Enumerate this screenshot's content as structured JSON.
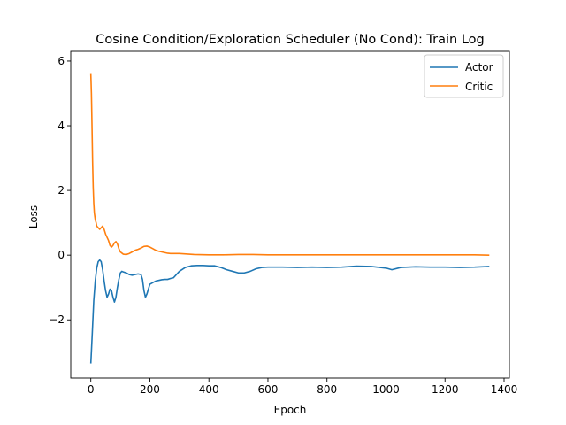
{
  "chart_data": {
    "type": "line",
    "title": "Cosine Condition/Exploration Scheduler (No Cond): Train Log",
    "xlabel": "Epoch",
    "ylabel": "Loss",
    "xlim": [
      -68,
      1418
    ],
    "ylim": [
      -3.8,
      6.3
    ],
    "xticks": [
      0,
      200,
      400,
      600,
      800,
      1000,
      1200,
      1400
    ],
    "yticks": [
      -2,
      0,
      2,
      4,
      6
    ],
    "xtick_labels": [
      "0",
      "200",
      "400",
      "600",
      "800",
      "1000",
      "1200",
      "1400"
    ],
    "ytick_labels": [
      "−2",
      "0",
      "2",
      "4",
      "6"
    ],
    "grid": false,
    "legend_position": "top-right",
    "series": [
      {
        "name": "Actor",
        "color": "#1f77b4",
        "x": [
          0,
          5,
          10,
          15,
          20,
          25,
          30,
          35,
          40,
          45,
          50,
          55,
          60,
          65,
          70,
          75,
          80,
          85,
          90,
          95,
          100,
          105,
          110,
          120,
          130,
          140,
          150,
          160,
          170,
          175,
          180,
          185,
          190,
          195,
          200,
          210,
          220,
          230,
          240,
          250,
          260,
          270,
          280,
          290,
          300,
          320,
          340,
          360,
          380,
          400,
          420,
          440,
          460,
          480,
          500,
          520,
          540,
          560,
          580,
          600,
          650,
          700,
          750,
          800,
          850,
          900,
          950,
          1000,
          1020,
          1050,
          1100,
          1150,
          1200,
          1250,
          1300,
          1350
        ],
        "y": [
          -3.35,
          -2.4,
          -1.4,
          -0.8,
          -0.4,
          -0.2,
          -0.15,
          -0.2,
          -0.45,
          -0.8,
          -1.1,
          -1.3,
          -1.2,
          -1.05,
          -1.1,
          -1.3,
          -1.45,
          -1.3,
          -1.0,
          -0.75,
          -0.55,
          -0.5,
          -0.52,
          -0.55,
          -0.6,
          -0.62,
          -0.6,
          -0.58,
          -0.6,
          -0.75,
          -1.1,
          -1.3,
          -1.2,
          -1.05,
          -0.9,
          -0.85,
          -0.8,
          -0.78,
          -0.76,
          -0.75,
          -0.75,
          -0.72,
          -0.7,
          -0.6,
          -0.5,
          -0.38,
          -0.33,
          -0.32,
          -0.32,
          -0.33,
          -0.33,
          -0.38,
          -0.45,
          -0.5,
          -0.55,
          -0.55,
          -0.5,
          -0.42,
          -0.38,
          -0.37,
          -0.37,
          -0.38,
          -0.37,
          -0.38,
          -0.37,
          -0.34,
          -0.35,
          -0.4,
          -0.45,
          -0.38,
          -0.36,
          -0.37,
          -0.37,
          -0.38,
          -0.37,
          -0.35
        ]
      },
      {
        "name": "Critic",
        "color": "#ff7f0e",
        "x": [
          0,
          2,
          4,
          6,
          8,
          10,
          12,
          15,
          18,
          20,
          25,
          30,
          35,
          40,
          45,
          50,
          55,
          60,
          65,
          70,
          75,
          80,
          85,
          90,
          95,
          100,
          110,
          120,
          130,
          140,
          150,
          160,
          170,
          180,
          190,
          200,
          210,
          220,
          230,
          240,
          250,
          260,
          270,
          280,
          300,
          350,
          400,
          450,
          500,
          550,
          600,
          700,
          800,
          900,
          1000,
          1100,
          1200,
          1300,
          1350
        ],
        "y": [
          5.6,
          5.0,
          4.0,
          2.9,
          2.1,
          1.6,
          1.3,
          1.1,
          1.0,
          0.9,
          0.85,
          0.8,
          0.85,
          0.9,
          0.8,
          0.65,
          0.55,
          0.45,
          0.3,
          0.25,
          0.3,
          0.38,
          0.42,
          0.35,
          0.2,
          0.1,
          0.03,
          0.02,
          0.05,
          0.1,
          0.15,
          0.18,
          0.22,
          0.27,
          0.28,
          0.25,
          0.2,
          0.15,
          0.12,
          0.1,
          0.08,
          0.06,
          0.05,
          0.05,
          0.05,
          0.02,
          0.01,
          0.01,
          0.02,
          0.02,
          0.01,
          0.01,
          0.01,
          0.01,
          0.01,
          0.01,
          0.01,
          0.01,
          0.0
        ]
      }
    ]
  }
}
